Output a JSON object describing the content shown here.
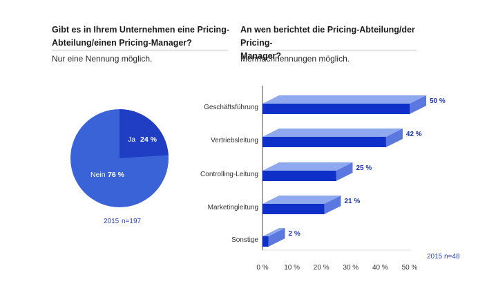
{
  "left": {
    "title_line1": "Gibt es in Ihrem Unternehmen eine Pricing-",
    "title_line2": "Abteilung/einen Pricing-Manager?",
    "note": "Nur eine Nennung möglich.",
    "meta_year": "2015",
    "meta_n": "n=197"
  },
  "right": {
    "title_line1": "An wen berichtet die Pricing-Abteilung/der Pricing-",
    "title_line2": "Manager?",
    "note": "Mehrfachnennungen möglich.",
    "meta_year": "2015",
    "meta_n": "n=48"
  },
  "colors": {
    "pie_main": "#3a63d8",
    "pie_slice": "#1f3ec4",
    "bar_front": "#0f30c8",
    "bar_top": "#8fa8ee",
    "bar_side": "#5a78df",
    "value_text": "#1f35b5"
  },
  "chart_data": [
    {
      "type": "pie",
      "slices": [
        {
          "label": "Ja",
          "value": 24,
          "value_label": "24 %"
        },
        {
          "label": "Nein",
          "value": 76,
          "value_label": "76 %"
        }
      ]
    },
    {
      "type": "bar",
      "orientation": "horizontal",
      "categories": [
        "Geschäftsführung",
        "Vertriebsleitung",
        "Controlling-Leitung",
        "Marketingleitung",
        "Sonstige"
      ],
      "values": [
        50,
        42,
        25,
        21,
        2
      ],
      "value_labels": [
        "50 %",
        "42 %",
        "25 %",
        "21 %",
        "2 %"
      ],
      "xlim": [
        0,
        50
      ],
      "xticks": [
        "0 %",
        "10 %",
        "20 %",
        "30 %",
        "40 %",
        "50 %"
      ]
    }
  ]
}
